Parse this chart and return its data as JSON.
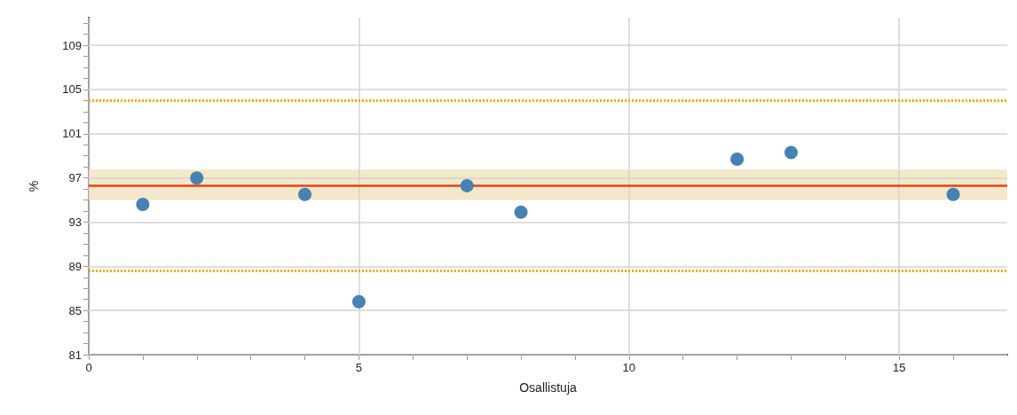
{
  "chart_data": {
    "type": "scatter",
    "xlabel": "Osallistuja",
    "ylabel": "%",
    "x": [
      1,
      2,
      4,
      5,
      7,
      8,
      12,
      13,
      16
    ],
    "series": [
      {
        "color": "#4682b4",
        "values": [
          94.6,
          97.0,
          95.5,
          85.8,
          96.3,
          93.9,
          98.7,
          99.3,
          95.5
        ]
      }
    ],
    "xlim": [
      0,
      17
    ],
    "ylim": [
      81,
      111.5
    ],
    "xticks": [
      0,
      {
        "value": 1,
        "label": null
      },
      {
        "value": 2,
        "label": null
      },
      {
        "value": 3,
        "label": null
      },
      {
        "value": 4,
        "label": null
      },
      5,
      {
        "value": 6,
        "label": null
      },
      {
        "value": 7,
        "label": null
      },
      {
        "value": 8,
        "label": null
      },
      {
        "value": 9,
        "label": null
      },
      10,
      {
        "value": 11,
        "label": null
      },
      {
        "value": 12,
        "label": null
      },
      {
        "value": 13,
        "label": null
      },
      {
        "value": 14,
        "label": null
      },
      15,
      {
        "value": 16,
        "label": null
      }
    ],
    "yticks": [
      81,
      {
        "value": 82,
        "label": null
      },
      {
        "value": 83,
        "label": null
      },
      {
        "value": 84,
        "label": null
      },
      85,
      {
        "value": 86,
        "label": null
      },
      {
        "value": 87,
        "label": null
      },
      {
        "value": 88,
        "label": null
      },
      89,
      {
        "value": 90,
        "label": null
      },
      {
        "value": 91,
        "label": null
      },
      {
        "value": 92,
        "label": null
      },
      93,
      {
        "value": 94,
        "label": null
      },
      {
        "value": 95,
        "label": null
      },
      {
        "value": 96,
        "label": null
      },
      97,
      {
        "value": 98,
        "label": null
      },
      {
        "value": 99,
        "label": null
      },
      {
        "value": 100,
        "label": null
      },
      101,
      {
        "value": 102,
        "label": null
      },
      {
        "value": 103,
        "label": null
      },
      {
        "value": 104,
        "label": null
      },
      105,
      {
        "value": 106,
        "label": null
      },
      {
        "value": 107,
        "label": null
      },
      {
        "value": 108,
        "label": null
      },
      109,
      {
        "value": 110,
        "label": null
      },
      {
        "value": 111,
        "label": null
      }
    ],
    "ref_lines": [
      {
        "axis": "y",
        "value": 96.35,
        "color": "#e8401c",
        "line_style": "solid"
      },
      {
        "axis": "y",
        "value": 104.0,
        "color": "#ffa500",
        "line_style": "dotted"
      },
      {
        "axis": "y",
        "value": 88.6,
        "color": "#ffa500",
        "line_style": "dotted"
      }
    ],
    "bands": [
      {
        "axis": "y",
        "from": 95.0,
        "to": 97.75,
        "color": "#f3e8c8"
      }
    ],
    "grid": true,
    "marker": "circle"
  }
}
